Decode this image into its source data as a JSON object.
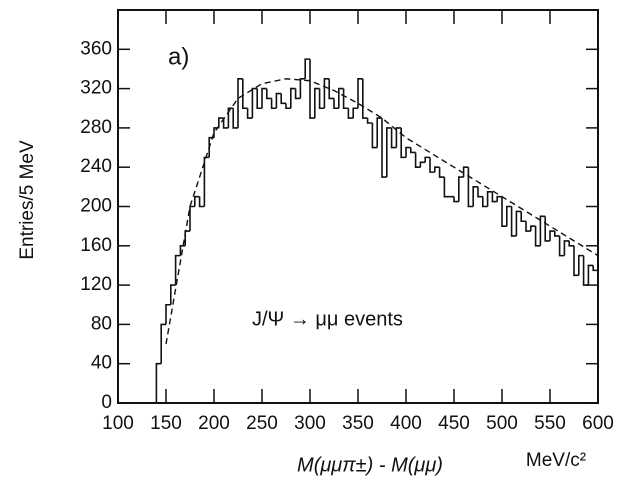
{
  "chart_data": {
    "type": "histogram",
    "ylabel": "Entries/5 MeV",
    "xlabel": "M(μμπ±) - M(μμ)",
    "xunit": "MeV/c²",
    "annotations": [
      "a)",
      "J/Ψ → μμ   events"
    ],
    "color": "#111111",
    "bins": [
      140,
      145,
      150,
      155,
      160,
      165,
      170,
      175,
      180,
      185,
      190,
      195,
      200,
      205,
      210,
      215,
      220,
      225,
      230,
      235,
      240,
      245,
      250,
      255,
      260,
      265,
      270,
      275,
      280,
      285,
      290,
      295,
      300,
      305,
      310,
      315,
      320,
      325,
      330,
      335,
      340,
      345,
      350,
      355,
      360,
      365,
      370,
      375,
      380,
      385,
      390,
      395,
      400,
      405,
      410,
      415,
      420,
      425,
      430,
      435,
      440,
      445,
      450,
      455,
      460,
      465,
      470,
      475,
      480,
      485,
      490,
      495,
      500,
      505,
      510,
      515,
      520,
      525,
      530,
      535,
      540,
      545,
      550,
      555,
      560,
      565,
      570,
      575,
      580,
      585,
      590,
      595,
      600
    ],
    "values": [
      40,
      80,
      100,
      120,
      150,
      160,
      175,
      200,
      210,
      200,
      250,
      270,
      280,
      290,
      280,
      300,
      280,
      330,
      300,
      290,
      320,
      300,
      320,
      310,
      300,
      315,
      305,
      300,
      320,
      310,
      330,
      350,
      290,
      320,
      300,
      330,
      310,
      300,
      320,
      300,
      290,
      300,
      330,
      290,
      285,
      260,
      290,
      230,
      280,
      260,
      280,
      250,
      260,
      255,
      240,
      245,
      250,
      235,
      240,
      230,
      210,
      210,
      205,
      230,
      240,
      200,
      220,
      210,
      200,
      215,
      205,
      210,
      180,
      200,
      170,
      195,
      185,
      175,
      180,
      160,
      190,
      165,
      175,
      170,
      150,
      165,
      160,
      130,
      150,
      120,
      140,
      135
    ],
    "fit": {
      "x": [
        150,
        175,
        200,
        225,
        250,
        275,
        300,
        325,
        350,
        375,
        400,
        425,
        450,
        475,
        500,
        525,
        550,
        575,
        600
      ],
      "values": [
        60,
        200,
        275,
        310,
        325,
        330,
        328,
        318,
        305,
        290,
        270,
        255,
        240,
        225,
        210,
        195,
        180,
        165,
        150
      ],
      "dashed": true
    },
    "xlim": [
      100,
      600
    ],
    "ylim": [
      0,
      400
    ],
    "xticks": [
      100,
      150,
      200,
      250,
      300,
      350,
      400,
      450,
      500,
      550,
      600
    ],
    "yticks": [
      0,
      40,
      80,
      120,
      160,
      200,
      240,
      280,
      320,
      360
    ]
  }
}
